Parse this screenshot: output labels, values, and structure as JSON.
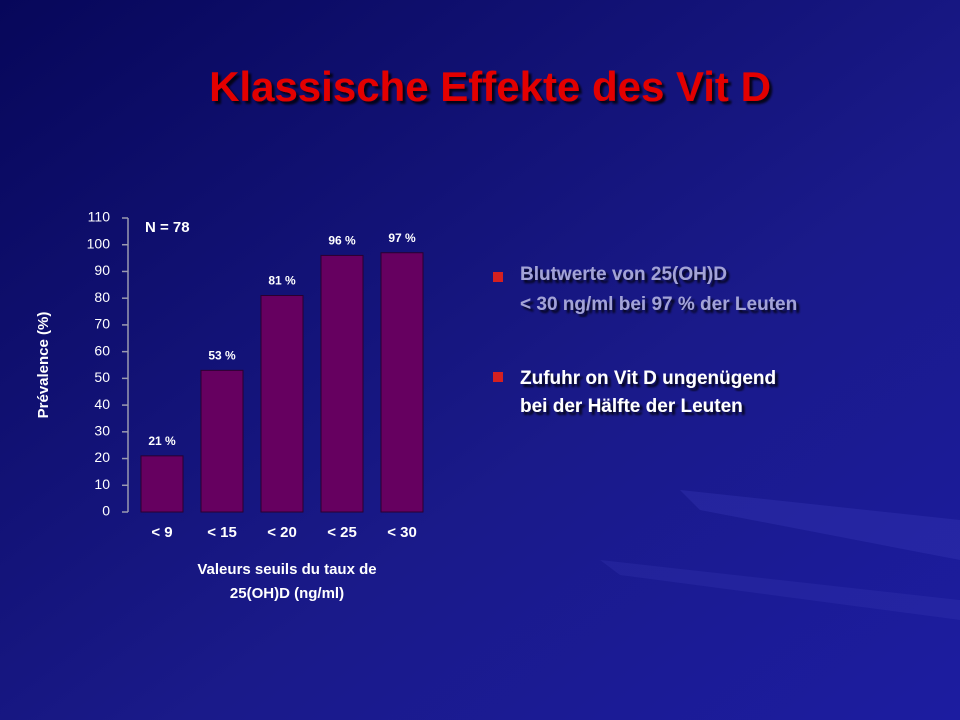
{
  "title": "Klassische Effekte des Vit D",
  "bullets": [
    [
      "Blutwerte von 25(OH)D",
      "< 30 ng/ml bei 97 % der  Leuten"
    ],
    [
      "Zufuhr on Vit D ungenügend",
      "bei der Hälfte der Leuten"
    ]
  ],
  "chart_data": {
    "type": "bar",
    "categories": [
      "< 9",
      "< 15",
      "< 20",
      "< 25",
      "< 30"
    ],
    "values": [
      21,
      53,
      81,
      96,
      97
    ],
    "value_labels": [
      "21 %",
      "53 %",
      "81 %",
      "96 %",
      "97 %"
    ],
    "color": "#660060",
    "ylim": [
      0,
      110
    ],
    "yticks": [
      0,
      10,
      20,
      30,
      40,
      50,
      60,
      70,
      80,
      90,
      100,
      110
    ],
    "ylabel": "Prévalence (%)",
    "xlabel": [
      "Valeurs seuils du taux de",
      "25(OH)D (ng/ml)"
    ],
    "annotation": "N = 78"
  }
}
